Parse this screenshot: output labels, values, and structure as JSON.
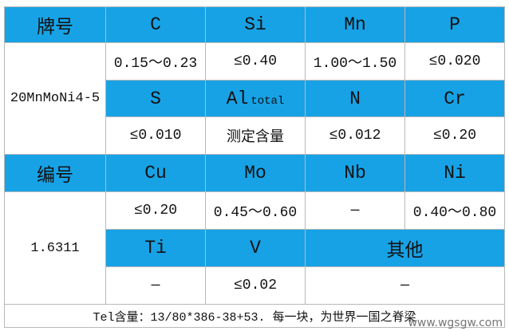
{
  "table": {
    "rows": [
      [
        "牌号",
        "C",
        "Si",
        "Mn",
        "P"
      ],
      [
        "20MnMoNi4-5",
        "0.15～0.23",
        "≤0.40",
        "1.00～1.50",
        "≤0.020"
      ],
      [
        "S",
        {
          "main": "Al",
          "sub": "total"
        },
        "N",
        "Cr"
      ],
      [
        "≤0.010",
        "测定含量",
        "≤0.012",
        "≤0.20"
      ],
      [
        "编号",
        "Cu",
        "Mo",
        "Nb",
        "Ni"
      ],
      [
        "1.6311",
        "≤0.20",
        "0.45～0.60",
        "—",
        "0.40～0.80"
      ],
      [
        "Ti",
        "V",
        "其他"
      ],
      [
        "—",
        "≤0.02",
        "—"
      ]
    ]
  },
  "footer": "Tel含量：13/80*386-38+53. 每一块，为世界一国之脊梁",
  "watermark": "www.wgsgw.com"
}
